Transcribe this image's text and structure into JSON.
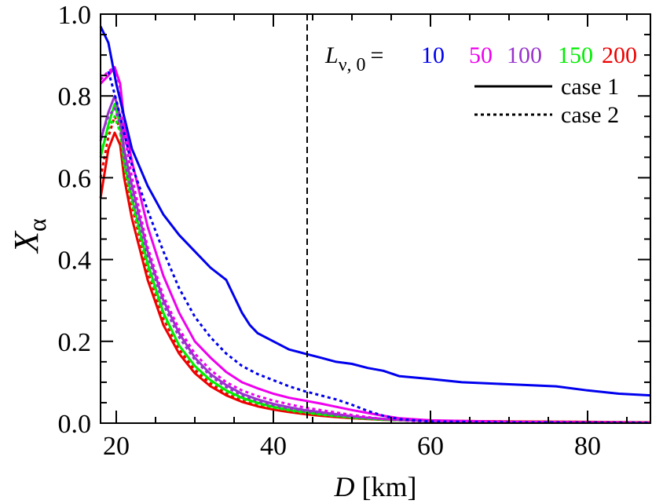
{
  "chart_data": {
    "type": "line",
    "title": "",
    "xlim": [
      18,
      88
    ],
    "ylim": [
      0,
      1
    ],
    "xticks": [
      "20",
      "40",
      "60",
      "80"
    ],
    "xtick_values": [
      20,
      40,
      60,
      80
    ],
    "yticks": [
      "0.0",
      "0.2",
      "0.4",
      "0.6",
      "0.8",
      "1.0"
    ],
    "ytick_values": [
      0,
      0.2,
      0.4,
      0.6,
      0.8,
      1.0
    ],
    "xlabel": {
      "var": "D",
      "unit": " [km]"
    },
    "ylabel": {
      "var": "X",
      "sub": "α"
    },
    "vertical_line": {
      "x": 44.3,
      "style": "dashed"
    },
    "grid": false,
    "legend": {
      "placement": "top-right",
      "title_var": "L",
      "title_sub": "ν, 0",
      "title_eq": "=",
      "values": [
        {
          "text": "10",
          "color": "#0000ee"
        },
        {
          "text": "50",
          "color": "#ee00ee"
        },
        {
          "text": "100",
          "color": "#9933cc"
        },
        {
          "text": "150",
          "color": "#00ee00"
        },
        {
          "text": "200",
          "color": "#ee0000"
        }
      ],
      "styles": [
        {
          "text": "case 1",
          "dash": "solid"
        },
        {
          "text": "case 2",
          "dash": "dotted"
        }
      ]
    },
    "series": [
      {
        "L": "10",
        "case": "case 1",
        "color": "#0000ee",
        "dash": "solid",
        "points": [
          [
            18,
            0.97
          ],
          [
            19,
            0.93
          ],
          [
            20,
            0.83
          ],
          [
            21,
            0.75
          ],
          [
            22,
            0.67
          ],
          [
            24,
            0.58
          ],
          [
            26,
            0.51
          ],
          [
            28,
            0.46
          ],
          [
            30,
            0.42
          ],
          [
            32,
            0.38
          ],
          [
            34,
            0.35
          ],
          [
            35,
            0.31
          ],
          [
            36,
            0.27
          ],
          [
            37,
            0.24
          ],
          [
            38,
            0.22
          ],
          [
            40,
            0.2
          ],
          [
            42,
            0.18
          ],
          [
            44,
            0.17
          ],
          [
            46,
            0.16
          ],
          [
            48,
            0.15
          ],
          [
            50,
            0.145
          ],
          [
            52,
            0.135
          ],
          [
            54,
            0.128
          ],
          [
            56,
            0.115
          ],
          [
            60,
            0.108
          ],
          [
            64,
            0.1
          ],
          [
            70,
            0.095
          ],
          [
            76,
            0.09
          ],
          [
            80,
            0.08
          ],
          [
            84,
            0.072
          ],
          [
            88,
            0.068
          ]
        ]
      },
      {
        "L": "10",
        "case": "case 2",
        "color": "#0000ee",
        "dash": "dotted",
        "points": [
          [
            19,
            0.86
          ],
          [
            20,
            0.79
          ],
          [
            21,
            0.71
          ],
          [
            22,
            0.63
          ],
          [
            24,
            0.52
          ],
          [
            26,
            0.42
          ],
          [
            28,
            0.33
          ],
          [
            30,
            0.26
          ],
          [
            32,
            0.21
          ],
          [
            34,
            0.17
          ],
          [
            36,
            0.14
          ],
          [
            38,
            0.12
          ],
          [
            40,
            0.105
          ],
          [
            42,
            0.09
          ],
          [
            44,
            0.078
          ],
          [
            46,
            0.068
          ],
          [
            48,
            0.058
          ],
          [
            50,
            0.045
          ],
          [
            52,
            0.03
          ],
          [
            54,
            0.018
          ],
          [
            56,
            0.01
          ],
          [
            60,
            0.004
          ],
          [
            70,
            0.002
          ],
          [
            88,
            0.001
          ]
        ]
      },
      {
        "L": "50",
        "case": "case 1",
        "color": "#ee00ee",
        "dash": "solid",
        "points": [
          [
            18,
            0.83
          ],
          [
            19,
            0.85
          ],
          [
            19.8,
            0.87
          ],
          [
            20.5,
            0.83
          ],
          [
            21,
            0.74
          ],
          [
            22,
            0.64
          ],
          [
            24,
            0.48
          ],
          [
            26,
            0.36
          ],
          [
            28,
            0.27
          ],
          [
            30,
            0.2
          ],
          [
            32,
            0.16
          ],
          [
            34,
            0.125
          ],
          [
            36,
            0.1
          ],
          [
            38,
            0.085
          ],
          [
            40,
            0.072
          ],
          [
            42,
            0.062
          ],
          [
            44,
            0.055
          ],
          [
            46,
            0.048
          ],
          [
            48,
            0.04
          ],
          [
            50,
            0.032
          ],
          [
            52,
            0.025
          ],
          [
            54,
            0.018
          ],
          [
            56,
            0.012
          ],
          [
            60,
            0.007
          ],
          [
            70,
            0.003
          ],
          [
            88,
            0.001
          ]
        ]
      },
      {
        "L": "50",
        "case": "case 2",
        "color": "#ee00ee",
        "dash": "dotted",
        "points": [
          [
            18,
            0.84
          ],
          [
            19,
            0.86
          ],
          [
            19.8,
            0.87
          ],
          [
            20.5,
            0.82
          ],
          [
            21,
            0.71
          ],
          [
            22,
            0.6
          ],
          [
            24,
            0.43
          ],
          [
            26,
            0.31
          ],
          [
            28,
            0.23
          ],
          [
            30,
            0.17
          ],
          [
            32,
            0.13
          ],
          [
            34,
            0.1
          ],
          [
            36,
            0.08
          ],
          [
            38,
            0.066
          ],
          [
            40,
            0.055
          ],
          [
            42,
            0.046
          ],
          [
            44,
            0.038
          ],
          [
            46,
            0.032
          ],
          [
            48,
            0.026
          ],
          [
            50,
            0.02
          ],
          [
            52,
            0.015
          ],
          [
            54,
            0.01
          ],
          [
            58,
            0.005
          ],
          [
            70,
            0.002
          ],
          [
            88,
            0.001
          ]
        ]
      },
      {
        "L": "100",
        "case": "case 1",
        "color": "#9933cc",
        "dash": "solid",
        "points": [
          [
            18,
            0.69
          ],
          [
            19,
            0.76
          ],
          [
            19.8,
            0.8
          ],
          [
            20.5,
            0.75
          ],
          [
            21,
            0.67
          ],
          [
            22,
            0.58
          ],
          [
            24,
            0.42
          ],
          [
            26,
            0.3
          ],
          [
            28,
            0.22
          ],
          [
            30,
            0.16
          ],
          [
            32,
            0.12
          ],
          [
            34,
            0.093
          ],
          [
            36,
            0.072
          ],
          [
            38,
            0.058
          ],
          [
            40,
            0.047
          ],
          [
            42,
            0.039
          ],
          [
            44,
            0.032
          ],
          [
            46,
            0.027
          ],
          [
            48,
            0.022
          ],
          [
            50,
            0.017
          ],
          [
            52,
            0.013
          ],
          [
            56,
            0.008
          ],
          [
            60,
            0.005
          ],
          [
            70,
            0.003
          ],
          [
            88,
            0.001
          ]
        ]
      },
      {
        "L": "100",
        "case": "case 2",
        "color": "#9933cc",
        "dash": "dotted",
        "points": [
          [
            18,
            0.7
          ],
          [
            19,
            0.75
          ],
          [
            19.8,
            0.77
          ],
          [
            20.5,
            0.73
          ],
          [
            21,
            0.65
          ],
          [
            22,
            0.56
          ],
          [
            24,
            0.41
          ],
          [
            26,
            0.29
          ],
          [
            28,
            0.21
          ],
          [
            30,
            0.155
          ],
          [
            32,
            0.115
          ],
          [
            34,
            0.088
          ],
          [
            36,
            0.068
          ],
          [
            38,
            0.054
          ],
          [
            40,
            0.044
          ],
          [
            42,
            0.036
          ],
          [
            44,
            0.03
          ],
          [
            46,
            0.025
          ],
          [
            48,
            0.02
          ],
          [
            50,
            0.016
          ],
          [
            54,
            0.01
          ],
          [
            60,
            0.005
          ],
          [
            70,
            0.002
          ],
          [
            88,
            0.001
          ]
        ]
      },
      {
        "L": "150",
        "case": "case 1",
        "color": "#00ee00",
        "dash": "solid",
        "points": [
          [
            18,
            0.65
          ],
          [
            19,
            0.73
          ],
          [
            19.8,
            0.78
          ],
          [
            20.5,
            0.73
          ],
          [
            21,
            0.64
          ],
          [
            22,
            0.55
          ],
          [
            24,
            0.39
          ],
          [
            26,
            0.27
          ],
          [
            28,
            0.19
          ],
          [
            30,
            0.14
          ],
          [
            32,
            0.105
          ],
          [
            34,
            0.08
          ],
          [
            36,
            0.062
          ],
          [
            38,
            0.05
          ],
          [
            40,
            0.04
          ],
          [
            42,
            0.033
          ],
          [
            44,
            0.027
          ],
          [
            46,
            0.022
          ],
          [
            48,
            0.018
          ],
          [
            50,
            0.014
          ],
          [
            54,
            0.009
          ],
          [
            60,
            0.005
          ],
          [
            70,
            0.002
          ],
          [
            88,
            0.001
          ]
        ]
      },
      {
        "L": "150",
        "case": "case 2",
        "color": "#00ee00",
        "dash": "dotted",
        "points": [
          [
            18,
            0.66
          ],
          [
            19,
            0.72
          ],
          [
            19.8,
            0.75
          ],
          [
            20.5,
            0.71
          ],
          [
            21,
            0.63
          ],
          [
            22,
            0.54
          ],
          [
            24,
            0.38
          ],
          [
            26,
            0.265
          ],
          [
            28,
            0.19
          ],
          [
            30,
            0.138
          ],
          [
            32,
            0.103
          ],
          [
            34,
            0.078
          ],
          [
            36,
            0.06
          ],
          [
            38,
            0.048
          ],
          [
            40,
            0.038
          ],
          [
            42,
            0.031
          ],
          [
            44,
            0.025
          ],
          [
            46,
            0.021
          ],
          [
            48,
            0.017
          ],
          [
            50,
            0.013
          ],
          [
            54,
            0.008
          ],
          [
            60,
            0.004
          ],
          [
            70,
            0.002
          ],
          [
            88,
            0.001
          ]
        ]
      },
      {
        "L": "200",
        "case": "case 1",
        "color": "#ee0000",
        "dash": "solid",
        "points": [
          [
            18,
            0.55
          ],
          [
            19,
            0.67
          ],
          [
            19.8,
            0.71
          ],
          [
            20.5,
            0.68
          ],
          [
            21,
            0.6
          ],
          [
            22,
            0.5
          ],
          [
            24,
            0.35
          ],
          [
            26,
            0.24
          ],
          [
            28,
            0.17
          ],
          [
            30,
            0.122
          ],
          [
            32,
            0.09
          ],
          [
            34,
            0.068
          ],
          [
            36,
            0.052
          ],
          [
            38,
            0.041
          ],
          [
            40,
            0.033
          ],
          [
            42,
            0.027
          ],
          [
            44,
            0.022
          ],
          [
            46,
            0.018
          ],
          [
            48,
            0.015
          ],
          [
            50,
            0.012
          ],
          [
            54,
            0.008
          ],
          [
            60,
            0.006
          ],
          [
            70,
            0.004
          ],
          [
            80,
            0.003
          ],
          [
            88,
            0.002
          ]
        ]
      },
      {
        "L": "200",
        "case": "case 2",
        "color": "#ee0000",
        "dash": "dotted",
        "points": [
          [
            18,
            0.6
          ],
          [
            19,
            0.7
          ],
          [
            19.8,
            0.75
          ],
          [
            20.5,
            0.72
          ],
          [
            21,
            0.63
          ],
          [
            22,
            0.53
          ],
          [
            24,
            0.37
          ],
          [
            26,
            0.255
          ],
          [
            28,
            0.18
          ],
          [
            30,
            0.13
          ],
          [
            32,
            0.097
          ],
          [
            34,
            0.073
          ],
          [
            36,
            0.056
          ],
          [
            38,
            0.044
          ],
          [
            40,
            0.035
          ],
          [
            42,
            0.029
          ],
          [
            44,
            0.024
          ],
          [
            46,
            0.019
          ],
          [
            48,
            0.016
          ],
          [
            50,
            0.013
          ],
          [
            54,
            0.009
          ],
          [
            60,
            0.006
          ],
          [
            70,
            0.004
          ],
          [
            88,
            0.002
          ]
        ]
      }
    ]
  }
}
